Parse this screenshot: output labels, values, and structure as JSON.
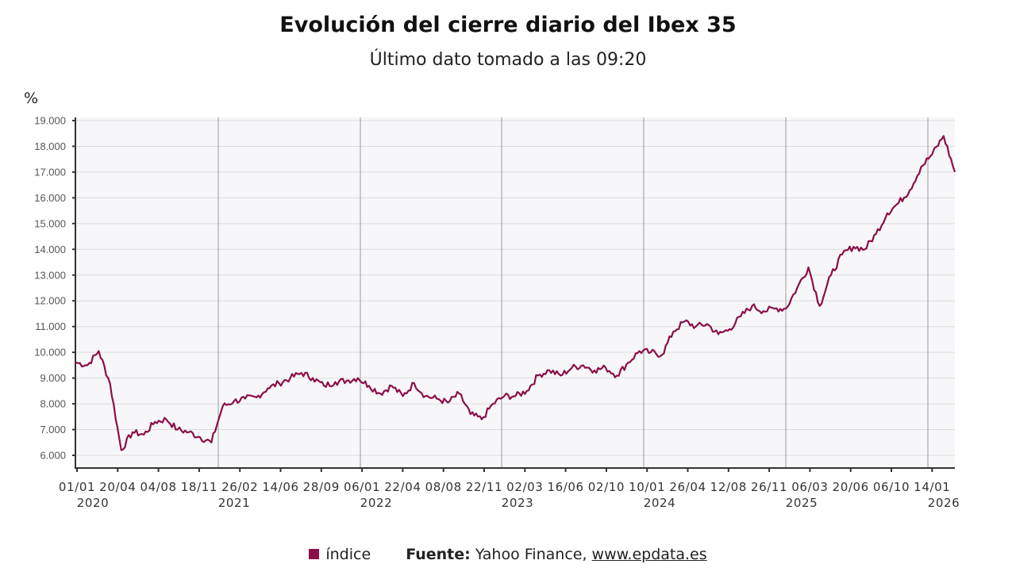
{
  "header": {
    "title": "Evolución del cierre diario del Ibex 35",
    "subtitle": "Último dato tomado a las 09:20",
    "y_unit_label": "%"
  },
  "legend": {
    "series_label": "índice",
    "series_color": "#8c0e48",
    "source_label": "Fuente:",
    "source_text": "Yahoo Finance,",
    "source_link": "www.epdata.es"
  },
  "chart_data": {
    "type": "line",
    "title": "Evolución del cierre diario del Ibex 35",
    "subtitle": "Último dato tomado a las 09:20",
    "xlabel": "",
    "ylabel": "%",
    "ylim": [
      5500,
      19000
    ],
    "grid": true,
    "legend_position": "bottom",
    "y_ticks": [
      "6.000",
      "7.000",
      "8.000",
      "9.000",
      "10.000",
      "11.000",
      "12.000",
      "13.000",
      "14.000",
      "15.000",
      "16.000",
      "17.000",
      "18.000",
      "19.000"
    ],
    "x_tick_labels": [
      "01/01",
      "20/04",
      "04/08",
      "18/11",
      "26/02",
      "14/06",
      "28/09",
      "06/01",
      "22/04",
      "08/08",
      "22/11",
      "02/03",
      "16/06",
      "02/10",
      "10/01",
      "26/04",
      "12/08",
      "26/11",
      "06/03",
      "20/06",
      "06/10",
      "14/01"
    ],
    "x_year_labels": [
      "2020",
      "2021",
      "2022",
      "2023",
      "2024",
      "2025",
      "2026"
    ],
    "series": [
      {
        "name": "índice",
        "color": "#8c0e48",
        "x": [
          "2020-01",
          "2020-02",
          "2020-02b",
          "2020-03",
          "2020-03b",
          "2020-04",
          "2020-05",
          "2020-06",
          "2020-07",
          "2020-08",
          "2020-09",
          "2020-10",
          "2020-10b",
          "2020-11",
          "2020-12",
          "2021-01",
          "2021-02",
          "2021-03",
          "2021-04",
          "2021-05",
          "2021-06",
          "2021-07",
          "2021-08",
          "2021-09",
          "2021-10",
          "2021-11",
          "2021-12",
          "2022-01",
          "2022-02",
          "2022-03",
          "2022-04",
          "2022-05",
          "2022-06",
          "2022-07",
          "2022-08",
          "2022-09",
          "2022-10",
          "2022-11",
          "2022-12",
          "2023-01",
          "2023-02",
          "2023-03",
          "2023-04",
          "2023-05",
          "2023-06",
          "2023-07",
          "2023-08",
          "2023-09",
          "2023-10",
          "2023-11",
          "2023-12",
          "2024-01",
          "2024-02",
          "2024-03",
          "2024-04",
          "2024-05",
          "2024-06",
          "2024-07",
          "2024-08",
          "2024-09",
          "2024-10",
          "2024-11",
          "2024-12",
          "2025-01",
          "2025-02",
          "2025-03",
          "2025-04",
          "2025-04b",
          "2025-05",
          "2025-06",
          "2025-07",
          "2025-08",
          "2025-09",
          "2025-10",
          "2025-11",
          "2025-12",
          "2026-01",
          "2026-01b",
          "2026-01c"
        ],
        "values": [
          9600,
          9500,
          10050,
          8800,
          6200,
          6900,
          6800,
          7300,
          7400,
          7000,
          6900,
          6700,
          6500,
          7900,
          8100,
          8200,
          8250,
          8600,
          8800,
          9000,
          9200,
          9000,
          8700,
          8850,
          8900,
          9000,
          8700,
          8400,
          8700,
          8300,
          8800,
          8300,
          8200,
          8050,
          8400,
          7600,
          7400,
          8000,
          8300,
          8300,
          8500,
          9100,
          9300,
          9100,
          9400,
          9500,
          9300,
          9400,
          9100,
          9600,
          10050,
          10000,
          9900,
          10800,
          11200,
          11000,
          11100,
          10700,
          10900,
          11400,
          11800,
          11600,
          11700,
          11700,
          12500,
          13300,
          11800,
          13000,
          13800,
          14100,
          14000,
          14600,
          15400,
          15800,
          16300,
          17200,
          17700,
          18400,
          17000
        ]
      }
    ]
  }
}
